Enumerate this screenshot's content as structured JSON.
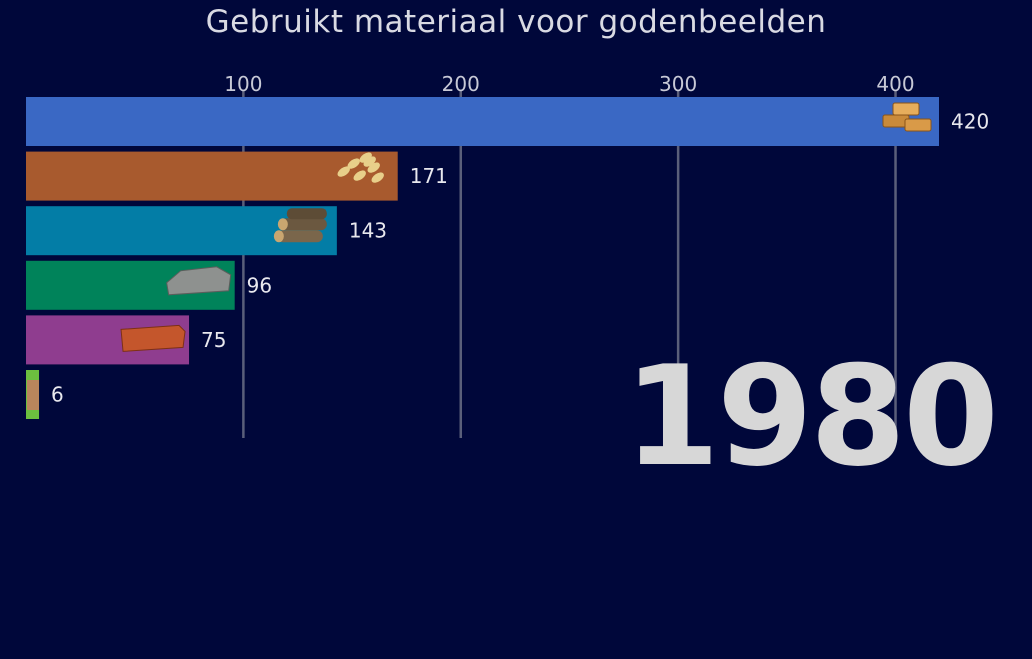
{
  "chart_data": {
    "type": "bar",
    "orientation": "horizontal",
    "title": "Gebruikt materiaal voor godenbeelden",
    "xlabel": "",
    "ylabel": "",
    "xlim": [
      0,
      420
    ],
    "xticks": [
      100,
      200,
      300,
      400
    ],
    "grid": true,
    "period_label": "1980",
    "bars": [
      {
        "value": 420,
        "label": "420",
        "color": "#3a68c4",
        "icon": "gold-bars-icon"
      },
      {
        "value": 171,
        "label": "171",
        "color": "#a85a2e",
        "icon": "wood-shavings-icon"
      },
      {
        "value": 143,
        "label": "143",
        "color": "#037da6",
        "icon": "logs-icon"
      },
      {
        "value": 96,
        "label": "96",
        "color": "#00835a",
        "icon": "stone-slab-icon"
      },
      {
        "value": 75,
        "label": "75",
        "color": "#8f3d8f",
        "icon": "brick-icon"
      },
      {
        "value": 6,
        "label": "6",
        "color": "#6cbf3f",
        "icon": "clay-icon"
      }
    ]
  },
  "colors": {
    "background": "#00073a",
    "gridline": "#5a5f7a",
    "year": "#d7d7d7"
  }
}
